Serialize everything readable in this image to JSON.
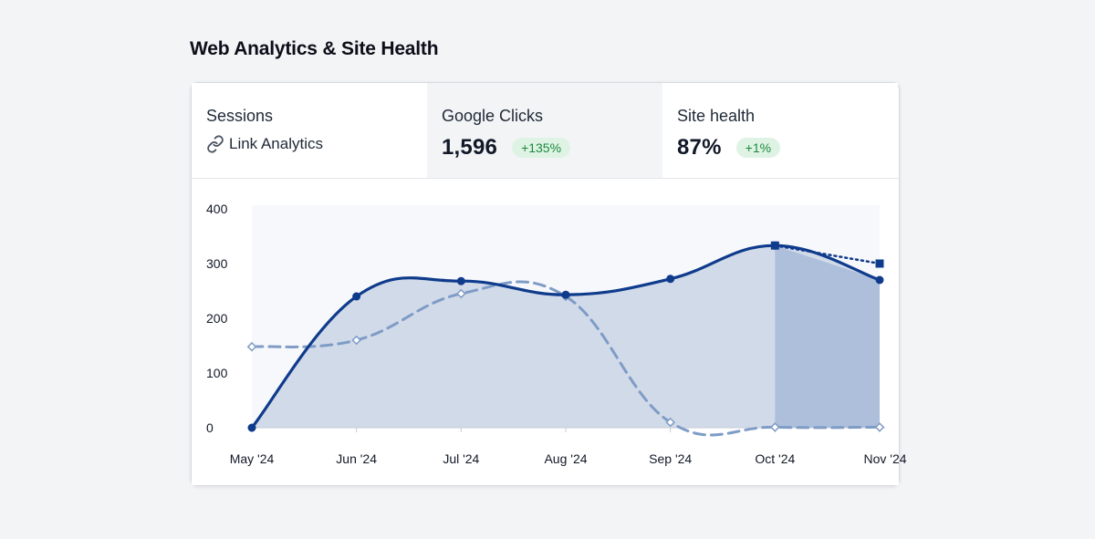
{
  "page": {
    "title": "Web Analytics & Site Health"
  },
  "tabs": [
    {
      "label": "Sessions",
      "link_text": "Link Analytics",
      "icon": "link-icon"
    },
    {
      "label": "Google Clicks",
      "value": "1,596",
      "change": "+135%"
    },
    {
      "label": "Site health",
      "value": "87%",
      "change": "+1%"
    }
  ],
  "colors": {
    "primary_line": "#0f3b8c",
    "secondary_line": "#7f9cc6",
    "area_fill": "#cfd8e8",
    "forecast_fill": "#a9bbd8",
    "badge_bg": "#dff3e4",
    "badge_text": "#1b8a3e"
  },
  "chart_data": {
    "type": "line",
    "categories": [
      "May '24",
      "Jun '24",
      "Jul '24",
      "Aug '24",
      "Sep '24",
      "Oct '24",
      "Nov '24"
    ],
    "y_ticks": [
      0,
      100,
      200,
      300,
      400
    ],
    "ylim": [
      0,
      400
    ],
    "series": [
      {
        "values": [
          0,
          240,
          268,
          243,
          272,
          333,
          270
        ],
        "style": "solid",
        "area": true
      },
      {
        "values": [
          148,
          160,
          245,
          240,
          10,
          1,
          1
        ],
        "style": "dashed"
      }
    ],
    "forecast": {
      "from_index": 5,
      "values": [
        333,
        300
      ]
    }
  }
}
